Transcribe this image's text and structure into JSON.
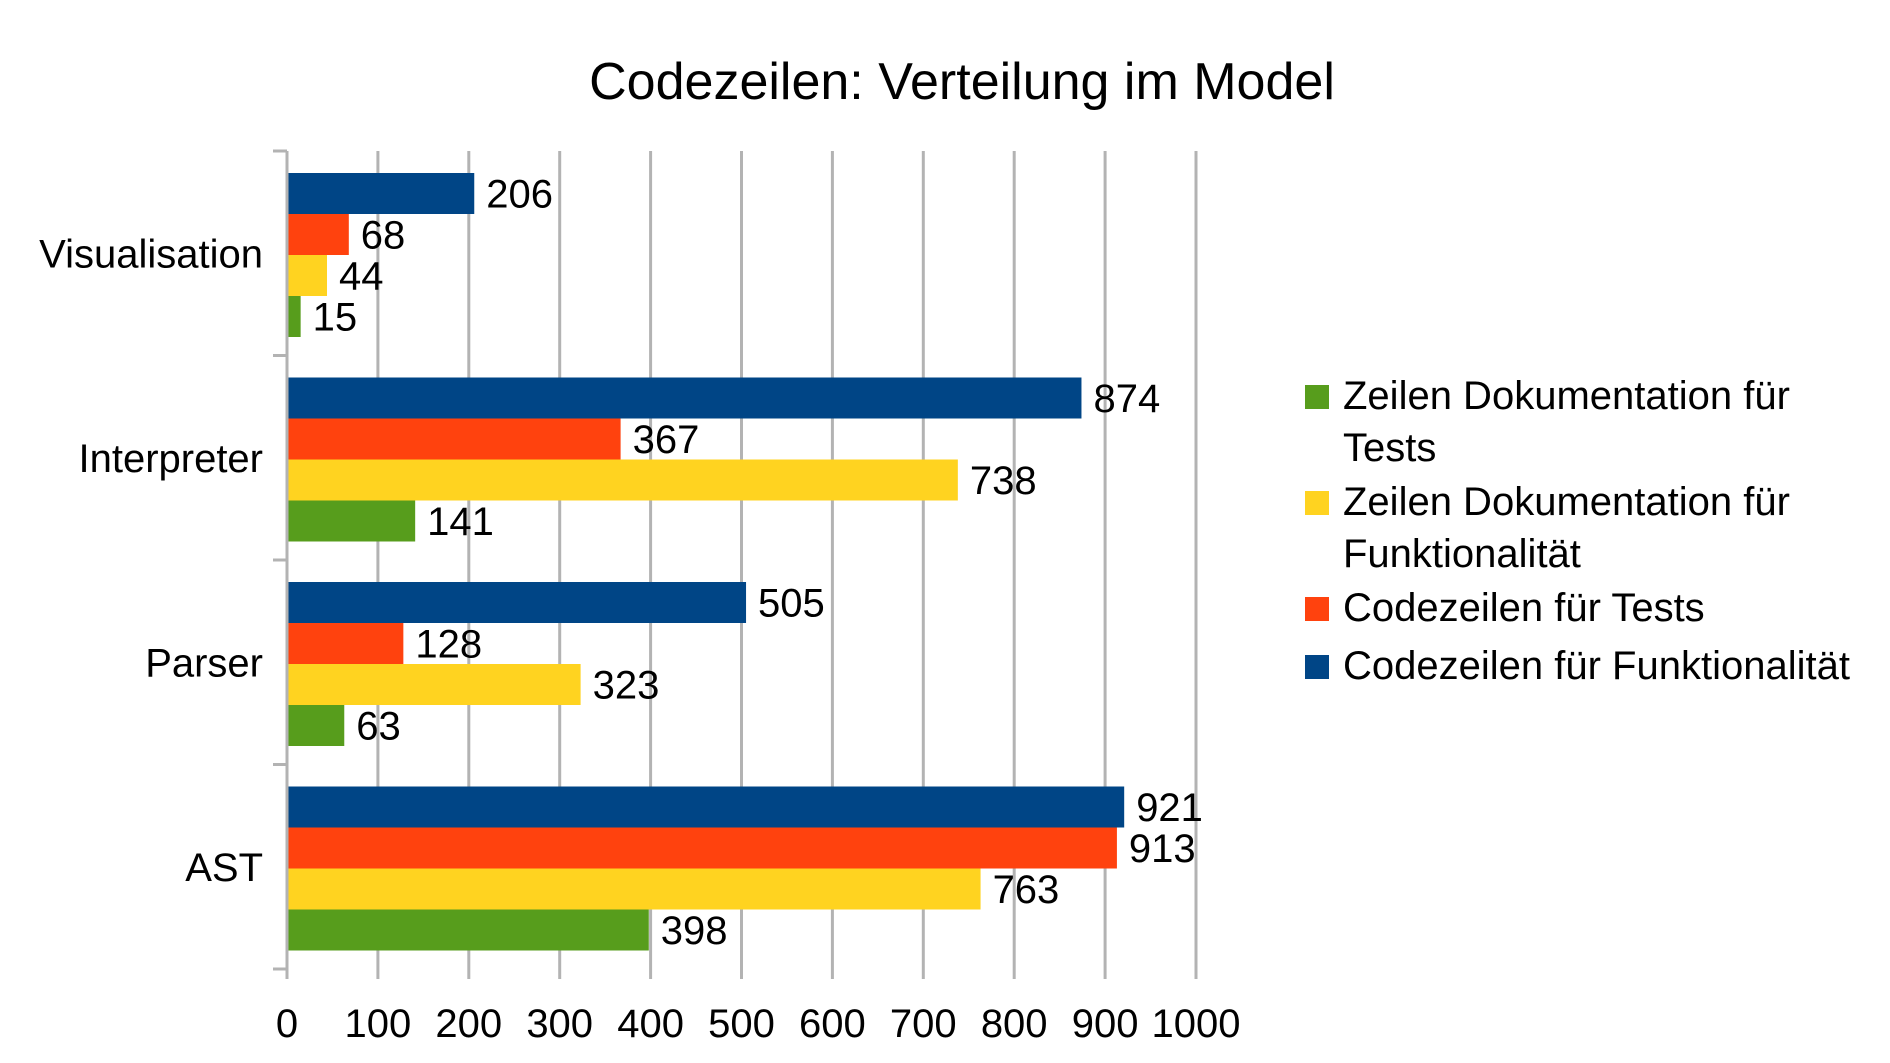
{
  "chart_data": {
    "type": "bar",
    "orientation": "horizontal",
    "title": "Codezeilen: Verteilung im Model",
    "xlabel": "",
    "ylabel": "",
    "xlim": [
      0,
      1000
    ],
    "x_ticks": [
      "0",
      "100",
      "200",
      "300",
      "400",
      "500",
      "600",
      "700",
      "800",
      "900",
      "1000"
    ],
    "categories": [
      "Visualisation",
      "Interpreter",
      "Parser",
      "AST"
    ],
    "series": [
      {
        "name": "Zeilen Dokumentation für Tests",
        "legend_lines": [
          "Zeilen Dokumentation für",
          "Tests"
        ],
        "color": "#579d1c",
        "values": [
          15,
          141,
          63,
          398
        ]
      },
      {
        "name": "Zeilen Dokumentation für Funktionalität",
        "legend_lines": [
          "Zeilen Dokumentation für",
          "Funktionalität"
        ],
        "color": "#ffd320",
        "values": [
          44,
          738,
          323,
          763
        ]
      },
      {
        "name": "Codezeilen für Tests",
        "legend_lines": [
          "Codezeilen für Tests"
        ],
        "color": "#ff420e",
        "values": [
          68,
          367,
          128,
          913
        ]
      },
      {
        "name": "Codezeilen für Funktionalität",
        "legend_lines": [
          "Codezeilen für Funktionalität"
        ],
        "color": "#004586",
        "values": [
          206,
          874,
          505,
          921
        ]
      }
    ],
    "grid": "vertical",
    "data_labels": true,
    "legend_position": "right"
  }
}
